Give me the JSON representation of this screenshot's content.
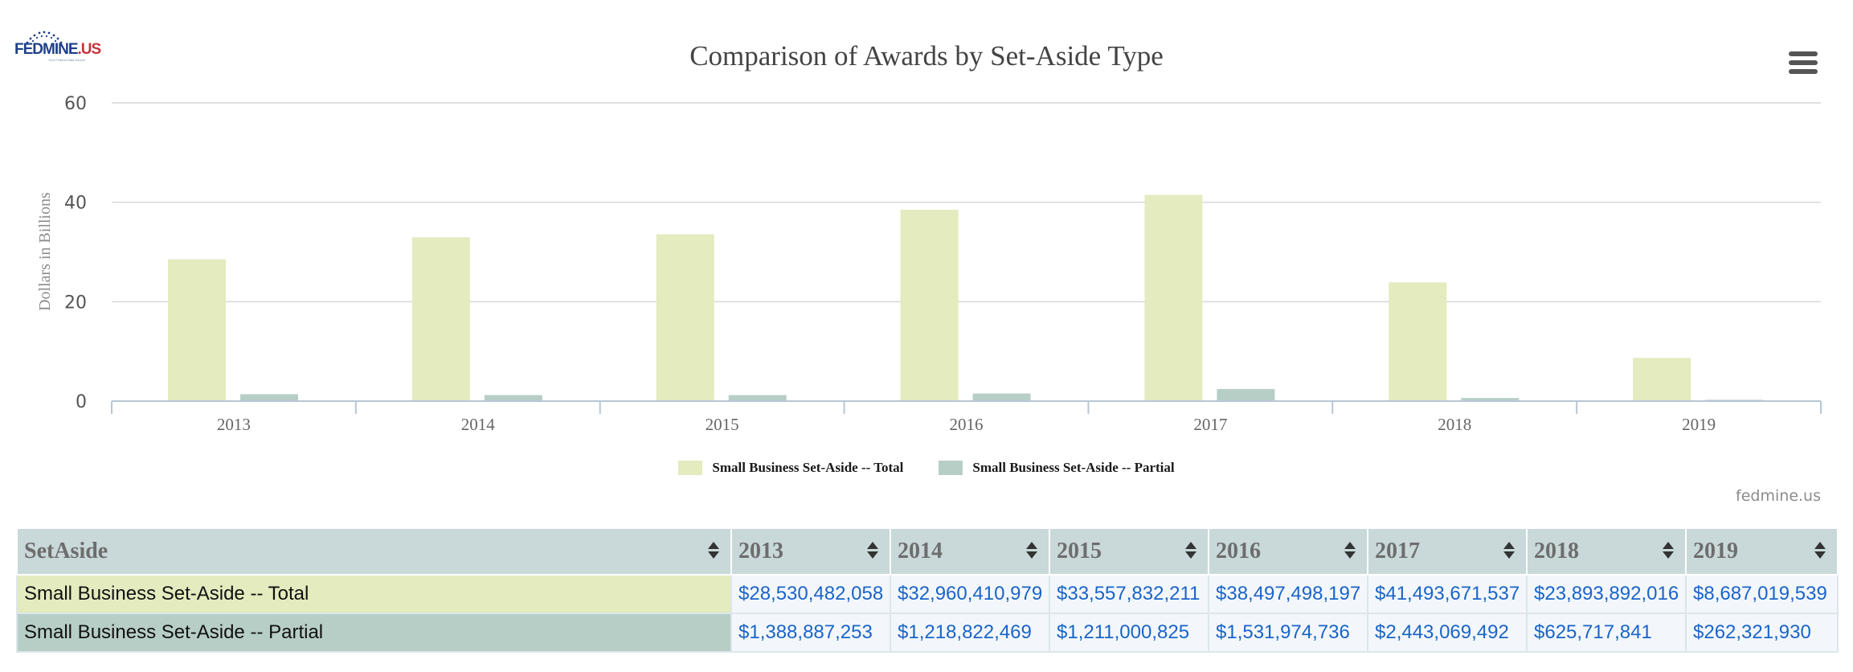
{
  "brand": {
    "logo_main": "FEDMINE",
    "logo_suffix": ".US",
    "logo_tag": "Your Federal Data Source"
  },
  "chart_data": {
    "type": "bar",
    "title": "Comparison of Awards by Set-Aside Type",
    "xlabel": "",
    "ylabel": "Dollars in Billions",
    "categories": [
      "2013",
      "2014",
      "2015",
      "2016",
      "2017",
      "2018",
      "2019"
    ],
    "ylim": [
      0,
      60
    ],
    "yticks": [
      0,
      20,
      40,
      60
    ],
    "grid": true,
    "legend_position": "bottom-center",
    "series": [
      {
        "name": "Small Business Set-Aside -- Total",
        "color": "#e3ebbf",
        "values": [
          28.53,
          32.96,
          33.56,
          38.5,
          41.49,
          23.89,
          8.69
        ]
      },
      {
        "name": "Small Business Set-Aside -- Partial",
        "color": "#b7cec7",
        "values": [
          1.39,
          1.22,
          1.21,
          1.53,
          2.44,
          0.63,
          0.26
        ]
      }
    ],
    "credit": "fedmine.us"
  },
  "table": {
    "headers": [
      "SetAside",
      "2013",
      "2014",
      "2015",
      "2016",
      "2017",
      "2018",
      "2019"
    ],
    "rows": [
      {
        "label": "Small Business Set-Aside -- Total",
        "color": "#e3ebbf",
        "values": [
          "$28,530,482,058",
          "$32,960,410,979",
          "$33,557,832,211",
          "$38,497,498,197",
          "$41,493,671,537",
          "$23,893,892,016",
          "$8,687,019,539"
        ]
      },
      {
        "label": "Small Business Set-Aside -- Partial",
        "color": "#b7cec7",
        "values": [
          "$1,388,887,253",
          "$1,218,822,469",
          "$1,211,000,825",
          "$1,531,974,736",
          "$2,443,069,492",
          "$625,717,841",
          "$262,321,930"
        ]
      }
    ]
  }
}
